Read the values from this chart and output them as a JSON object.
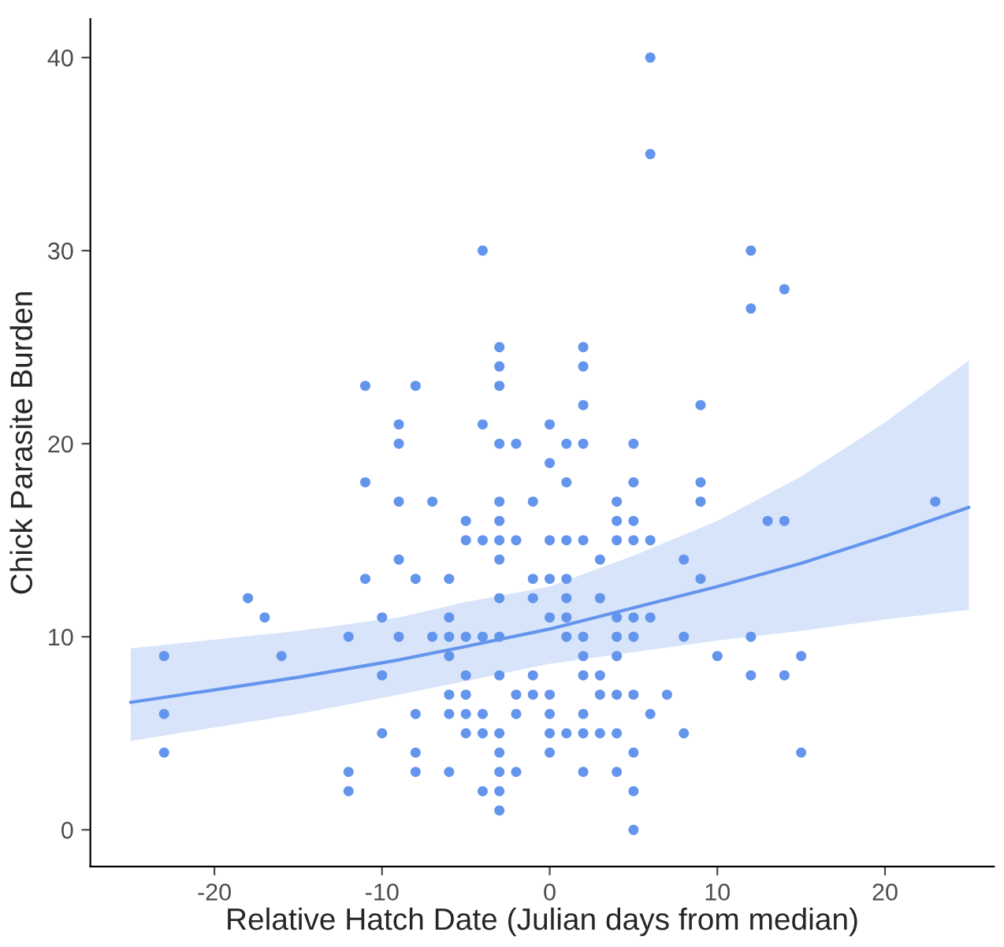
{
  "chart_data": {
    "type": "scatter",
    "xlabel": "Relative Hatch Date (Julian days from median)",
    "ylabel": "Chick Parasite Burden",
    "xlim": [
      -27.4,
      26.5
    ],
    "ylim": [
      -1.9,
      42
    ],
    "xticks": [
      -20,
      -10,
      0,
      10,
      20
    ],
    "yticks": [
      0,
      10,
      20,
      30,
      40
    ],
    "grid": false,
    "legend": false,
    "marker": "circle",
    "series": [
      {
        "color": "#6495ed",
        "x": [
          -23,
          -23,
          -23,
          -18,
          -17,
          -16,
          -12,
          -12,
          -12,
          -11,
          -11,
          -11,
          -10,
          -10,
          -10,
          -9,
          -9,
          -9,
          -9,
          -9,
          -8,
          -8,
          -8,
          -8,
          -8,
          -7,
          -7,
          -6,
          -6,
          -6,
          -6,
          -6,
          -6,
          -6,
          -5,
          -5,
          -5,
          -5,
          -5,
          -5,
          -5,
          -4,
          -4,
          -4,
          -4,
          -4,
          -4,
          -4,
          -3,
          -3,
          -3,
          -3,
          -3,
          -3,
          -3,
          -3,
          -3,
          -3,
          -3,
          -3,
          -3,
          -3,
          -3,
          -3,
          -2,
          -2,
          -2,
          -2,
          -2,
          -1,
          -1,
          -1,
          -1,
          -1,
          0,
          0,
          0,
          0,
          0,
          0,
          0,
          0,
          0,
          1,
          1,
          1,
          1,
          1,
          1,
          1,
          1,
          2,
          2,
          2,
          2,
          2,
          2,
          2,
          2,
          2,
          2,
          2,
          3,
          3,
          3,
          3,
          3,
          4,
          4,
          4,
          4,
          4,
          4,
          4,
          4,
          4,
          5,
          5,
          5,
          5,
          5,
          5,
          5,
          5,
          5,
          5,
          6,
          6,
          6,
          6,
          6,
          7,
          8,
          8,
          8,
          9,
          9,
          9,
          9,
          10,
          12,
          12,
          12,
          12,
          13,
          14,
          14,
          14,
          15,
          15,
          23
        ],
        "values": [
          9,
          6,
          4,
          12,
          11,
          9,
          10,
          3,
          2,
          23,
          18,
          13,
          11,
          8,
          5,
          21,
          20,
          17,
          14,
          10,
          23,
          13,
          6,
          4,
          3,
          17,
          10,
          13,
          11,
          10,
          9,
          7,
          6,
          3,
          16,
          15,
          10,
          8,
          7,
          6,
          5,
          30,
          21,
          15,
          10,
          6,
          5,
          2,
          25,
          24,
          23,
          20,
          17,
          16,
          15,
          14,
          12,
          10,
          8,
          5,
          4,
          3,
          2,
          1,
          20,
          15,
          7,
          6,
          3,
          17,
          13,
          12,
          8,
          7,
          21,
          19,
          15,
          13,
          11,
          7,
          6,
          5,
          4,
          20,
          18,
          15,
          13,
          12,
          11,
          10,
          5,
          25,
          24,
          22,
          20,
          15,
          10,
          9,
          8,
          6,
          5,
          3,
          14,
          12,
          8,
          7,
          5,
          17,
          16,
          15,
          11,
          10,
          9,
          7,
          5,
          3,
          20,
          18,
          16,
          15,
          11,
          10,
          7,
          4,
          2,
          0,
          40,
          35,
          15,
          11,
          6,
          7,
          14,
          10,
          5,
          22,
          18,
          17,
          13,
          9,
          30,
          27,
          10,
          8,
          16,
          28,
          16,
          8,
          9,
          4,
          17
        ]
      },
      {
        "type": "line",
        "color": "#6495ed",
        "marker": "none",
        "line_style": "solid",
        "x": [
          -25,
          -15,
          -9,
          -5,
          0,
          5,
          10,
          15,
          20,
          25
        ],
        "values": [
          6.6,
          7.9,
          8.8,
          9.5,
          10.4,
          11.5,
          12.6,
          13.8,
          15.2,
          16.7
        ],
        "lower": [
          4.6,
          6.0,
          7.0,
          7.7,
          8.6,
          9.2,
          9.8,
          10.3,
          10.9,
          11.4
        ],
        "upper": [
          9.4,
          10.3,
          11.0,
          11.8,
          12.6,
          14.2,
          16.0,
          18.3,
          21.1,
          24.3
        ]
      }
    ]
  }
}
